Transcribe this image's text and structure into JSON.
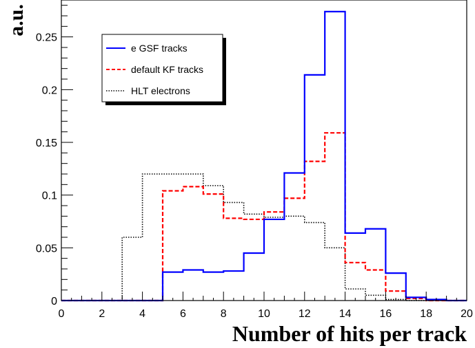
{
  "chart_data": {
    "type": "step-histogram",
    "xlabel": "Number of hits per track",
    "ylabel": "a.u.",
    "xlim": [
      0,
      20
    ],
    "ylim": [
      0,
      0.285
    ],
    "bin_edges": [
      0,
      1,
      2,
      3,
      4,
      5,
      6,
      7,
      8,
      9,
      10,
      11,
      12,
      13,
      14,
      15,
      16,
      17,
      18,
      19,
      20
    ],
    "x_ticks": [
      0,
      2,
      4,
      6,
      8,
      10,
      12,
      14,
      16,
      18,
      20
    ],
    "x_tick_labels": [
      "0",
      "2",
      "4",
      "6",
      "8",
      "10",
      "12",
      "14",
      "16",
      "18",
      "20"
    ],
    "y_ticks": [
      0,
      0.05,
      0.1,
      0.15,
      0.2,
      0.25
    ],
    "y_tick_labels": [
      "0",
      "0.05",
      "0.1",
      "0.15",
      "0.2",
      "0.25"
    ],
    "grid": false,
    "legend_position": "top-left",
    "series": [
      {
        "name": "e GSF tracks",
        "color": "#0000ff",
        "dash": "solid",
        "values": [
          0,
          0,
          0,
          0,
          0,
          0.027,
          0.029,
          0.027,
          0.028,
          0.045,
          0.077,
          0.121,
          0.214,
          0.274,
          0.064,
          0.068,
          0.026,
          0.003,
          0.001,
          0
        ]
      },
      {
        "name": "default KF tracks",
        "color": "#ff0000",
        "dash": "dashed",
        "values": [
          0,
          0,
          0,
          0,
          0,
          0.104,
          0.108,
          0.101,
          0.078,
          0.077,
          0.084,
          0.097,
          0.132,
          0.159,
          0.036,
          0.029,
          0.009,
          0.002,
          0,
          0
        ]
      },
      {
        "name": "HLT electrons",
        "color": "#000000",
        "dash": "dotted",
        "values": [
          0,
          0,
          0,
          0.06,
          0.12,
          0.12,
          0.12,
          0.109,
          0.093,
          0.082,
          0.079,
          0.08,
          0.074,
          0.05,
          0.011,
          0.005,
          0.001,
          0,
          0,
          0
        ]
      }
    ]
  }
}
